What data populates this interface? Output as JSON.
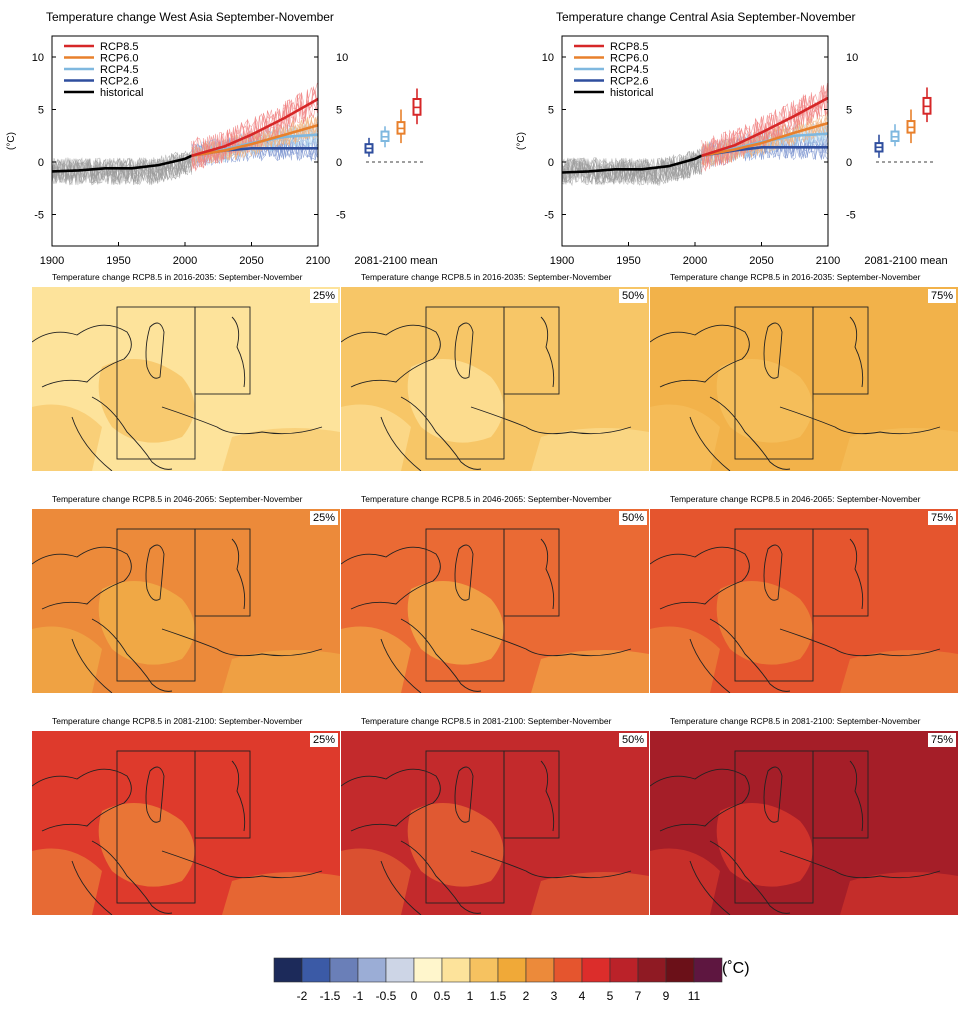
{
  "timeseries": [
    {
      "title": "Temperature change West Asia September-November"
    },
    {
      "title": "Temperature change Central Asia September-November"
    }
  ],
  "legend": [
    {
      "label": "RCP8.5",
      "color": "#d62728"
    },
    {
      "label": "RCP6.0",
      "color": "#e8802c"
    },
    {
      "label": "RCP4.5",
      "color": "#7fb8df"
    },
    {
      "label": "RCP2.6",
      "color": "#2f4e9e"
    },
    {
      "label": "historical",
      "color": "#000000"
    }
  ],
  "axis": {
    "ylabel": "(°C)",
    "yticks": [
      "10",
      "5",
      "0",
      "-5"
    ],
    "yticks_right": [
      "10",
      "5",
      "0",
      "-5"
    ],
    "xticks": [
      "1900",
      "1950",
      "2000",
      "2050",
      "2100"
    ],
    "mean_label": "2081-2100 mean"
  },
  "chart_data": [
    {
      "type": "line",
      "title": "Temperature change West Asia September-November",
      "ylabel": "(°C)",
      "xlim": [
        1900,
        2100
      ],
      "ylim": [
        -8,
        12
      ],
      "series": [
        {
          "name": "historical",
          "x": [
            1900,
            1920,
            1940,
            1960,
            1980,
            2000,
            2005
          ],
          "values": [
            -0.9,
            -0.8,
            -0.6,
            -0.6,
            -0.3,
            0.3,
            0.6
          ]
        },
        {
          "name": "RCP2.6",
          "x": [
            2005,
            2030,
            2050,
            2075,
            2100
          ],
          "values": [
            0.6,
            1.1,
            1.3,
            1.3,
            1.3
          ]
        },
        {
          "name": "RCP4.5",
          "x": [
            2005,
            2030,
            2050,
            2075,
            2100
          ],
          "values": [
            0.6,
            1.2,
            1.8,
            2.4,
            2.6
          ]
        },
        {
          "name": "RCP6.0",
          "x": [
            2005,
            2030,
            2050,
            2075,
            2100
          ],
          "values": [
            0.6,
            1.1,
            1.7,
            2.6,
            3.5
          ]
        },
        {
          "name": "RCP8.5",
          "x": [
            2005,
            2030,
            2050,
            2075,
            2100
          ],
          "values": [
            0.6,
            1.5,
            2.6,
            4.2,
            6.0
          ]
        }
      ],
      "mean_boxes": [
        {
          "name": "RCP2.6",
          "median": 1.3,
          "q1": 0.9,
          "q3": 1.7,
          "min": 0.5,
          "max": 2.3
        },
        {
          "name": "RCP4.5",
          "median": 2.4,
          "q1": 2.0,
          "q3": 2.9,
          "min": 1.4,
          "max": 3.4
        },
        {
          "name": "RCP6.0",
          "median": 3.2,
          "q1": 2.7,
          "q3": 3.8,
          "min": 1.8,
          "max": 5.0
        },
        {
          "name": "RCP8.5",
          "median": 5.2,
          "q1": 4.5,
          "q3": 6.0,
          "min": 3.6,
          "max": 7.0
        }
      ]
    },
    {
      "type": "line",
      "title": "Temperature change Central Asia September-November",
      "ylabel": "(°C)",
      "xlim": [
        1900,
        2100
      ],
      "ylim": [
        -8,
        12
      ],
      "series": [
        {
          "name": "historical",
          "x": [
            1900,
            1920,
            1940,
            1960,
            1980,
            2000,
            2005
          ],
          "values": [
            -1.0,
            -0.9,
            -0.7,
            -0.7,
            -0.4,
            0.3,
            0.6
          ]
        },
        {
          "name": "RCP2.6",
          "x": [
            2005,
            2030,
            2050,
            2075,
            2100
          ],
          "values": [
            0.6,
            1.1,
            1.4,
            1.4,
            1.4
          ]
        },
        {
          "name": "RCP4.5",
          "x": [
            2005,
            2030,
            2050,
            2075,
            2100
          ],
          "values": [
            0.6,
            1.3,
            1.9,
            2.5,
            2.7
          ]
        },
        {
          "name": "RCP6.0",
          "x": [
            2005,
            2030,
            2050,
            2075,
            2100
          ],
          "values": [
            0.6,
            1.2,
            1.8,
            2.8,
            3.7
          ]
        },
        {
          "name": "RCP8.5",
          "x": [
            2005,
            2030,
            2050,
            2075,
            2100
          ],
          "values": [
            0.6,
            1.6,
            2.8,
            4.4,
            6.1
          ]
        }
      ],
      "mean_boxes": [
        {
          "name": "RCP2.6",
          "median": 1.4,
          "q1": 1.0,
          "q3": 1.8,
          "min": 0.4,
          "max": 2.6
        },
        {
          "name": "RCP4.5",
          "median": 2.4,
          "q1": 2.0,
          "q3": 2.9,
          "min": 1.5,
          "max": 3.6
        },
        {
          "name": "RCP6.0",
          "median": 3.3,
          "q1": 2.8,
          "q3": 3.9,
          "min": 1.8,
          "max": 5.0
        },
        {
          "name": "RCP8.5",
          "median": 5.3,
          "q1": 4.6,
          "q3": 6.1,
          "min": 3.8,
          "max": 7.1
        }
      ]
    }
  ],
  "maps": [
    [
      {
        "title": "Temperature change RCP8.5 in 2016-2035: September-November",
        "pct": "25%",
        "base": "#fde39b",
        "patch": "#f6c260"
      },
      {
        "title": "Temperature change RCP8.5 in 2016-2035: September-November",
        "pct": "50%",
        "base": "#f7c667",
        "patch": "#fde39b"
      },
      {
        "title": "Temperature change RCP8.5 in 2016-2035: September-November",
        "pct": "75%",
        "base": "#f2b24a",
        "patch": "#f6c260"
      }
    ],
    [
      {
        "title": "Temperature change RCP8.5 in 2046-2065: September-November",
        "pct": "25%",
        "base": "#ec8a3a",
        "patch": "#f2b24a"
      },
      {
        "title": "Temperature change RCP8.5 in 2046-2065: September-November",
        "pct": "50%",
        "base": "#ea6a34",
        "patch": "#f2b24a"
      },
      {
        "title": "Temperature change RCP8.5 in 2046-2065: September-November",
        "pct": "75%",
        "base": "#e5552e",
        "patch": "#ec8a3a"
      }
    ],
    [
      {
        "title": "Temperature change RCP8.5 in 2081-2100: September-November",
        "pct": "25%",
        "base": "#de3a2c",
        "patch": "#ec8a3a"
      },
      {
        "title": "Temperature change RCP8.5 in 2081-2100: September-November",
        "pct": "50%",
        "base": "#c32a2c",
        "patch": "#ea6a34"
      },
      {
        "title": "Temperature change RCP8.5 in 2081-2100: September-November",
        "pct": "75%",
        "base": "#a51e28",
        "patch": "#de3a2c"
      }
    ]
  ],
  "colorbar": {
    "colors": [
      "#1c2a5a",
      "#3b5aa6",
      "#6a7fb8",
      "#9badd6",
      "#cdd5e6",
      "#fff6cc",
      "#fde39b",
      "#f6c260",
      "#f0a938",
      "#ec8a3a",
      "#e5552e",
      "#dc2d2b",
      "#bb2229",
      "#8f1a23",
      "#6b1018",
      "#5e1640"
    ],
    "ticks": [
      "-2",
      "-1.5",
      "-1",
      "-0.5",
      "0",
      "0.5",
      "1",
      "1.5",
      "2",
      "3",
      "4",
      "5",
      "7",
      "9",
      "11"
    ],
    "unit": "(˚C)"
  }
}
